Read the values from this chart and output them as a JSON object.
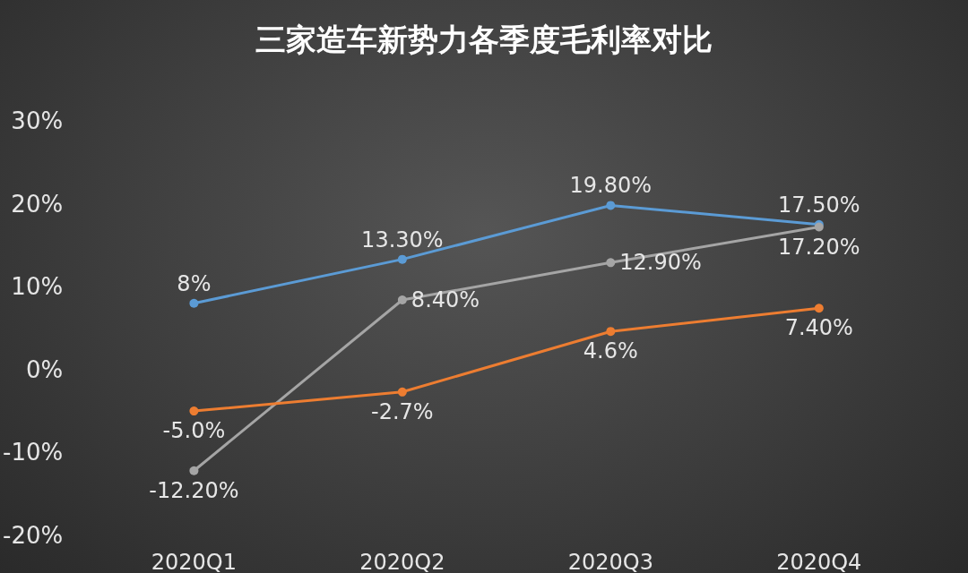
{
  "chart_data": {
    "type": "line",
    "title": "三家造车新势力各季度毛利率对比",
    "categories": [
      "2020Q1",
      "2020Q2",
      "2020Q3",
      "2020Q4"
    ],
    "series": [
      {
        "color": "#5b9bd5",
        "values": [
          8,
          13.3,
          19.8,
          17.5
        ],
        "value_labels": [
          "8%",
          "13.30%",
          "19.80%",
          "17.50%"
        ]
      },
      {
        "color": "#a5a5a5",
        "values": [
          -12.2,
          8.4,
          12.9,
          17.2
        ],
        "value_labels": [
          "-12.20%",
          "8.40%",
          "12.90%",
          "17.20%"
        ]
      },
      {
        "color": "#ed7d31",
        "values": [
          -5.0,
          -2.7,
          4.6,
          7.4
        ],
        "value_labels": [
          "-5.0%",
          "-2.7%",
          "4.6%",
          "7.40%"
        ]
      }
    ],
    "ylim": [
      -20,
      30
    ],
    "yticks": [
      {
        "value": -20,
        "label": "-20%"
      },
      {
        "value": -10,
        "label": "-10%"
      },
      {
        "value": 0,
        "label": "0%"
      },
      {
        "value": 10,
        "label": "10%"
      },
      {
        "value": 20,
        "label": "20%"
      },
      {
        "value": 30,
        "label": "30%"
      }
    ],
    "grid": false,
    "marker": "circle",
    "line_style": "solid"
  }
}
